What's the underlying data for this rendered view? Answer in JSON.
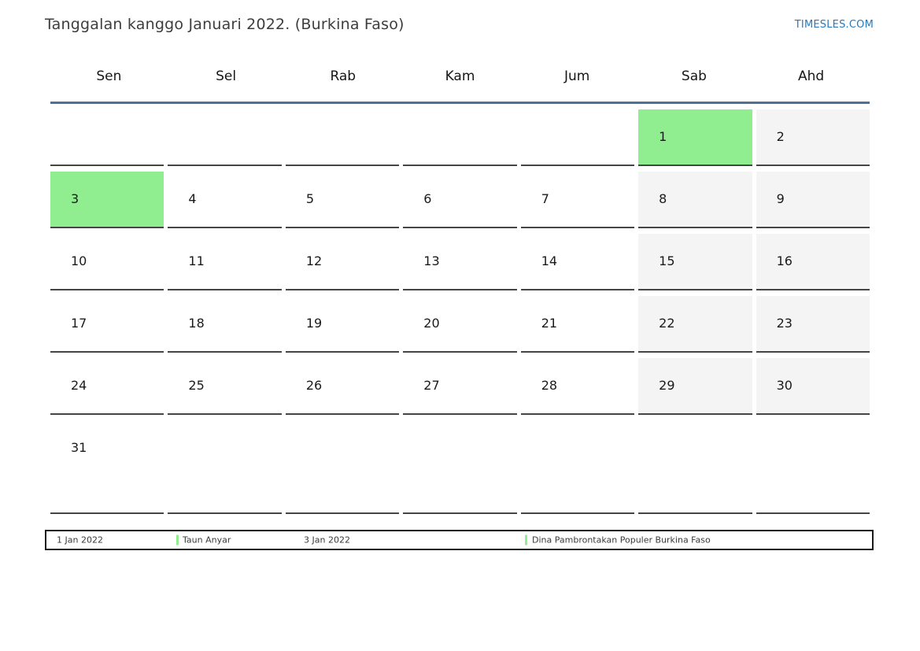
{
  "header": {
    "title": "Tanggalan kanggo Januari 2022. (Burkina Faso)",
    "site_link": "TIMESLES.COM"
  },
  "weekdays": [
    "Sen",
    "Sel",
    "Rab",
    "Kam",
    "Jum",
    "Sab",
    "Ahd"
  ],
  "calendar": {
    "weeks": [
      [
        {
          "day": ""
        },
        {
          "day": ""
        },
        {
          "day": ""
        },
        {
          "day": ""
        },
        {
          "day": ""
        },
        {
          "day": "1",
          "holiday": true
        },
        {
          "day": "2",
          "weekend": true
        }
      ],
      [
        {
          "day": "3",
          "holiday": true
        },
        {
          "day": "4"
        },
        {
          "day": "5"
        },
        {
          "day": "6"
        },
        {
          "day": "7"
        },
        {
          "day": "8",
          "weekend": true
        },
        {
          "day": "9",
          "weekend": true
        }
      ],
      [
        {
          "day": "10"
        },
        {
          "day": "11"
        },
        {
          "day": "12"
        },
        {
          "day": "13"
        },
        {
          "day": "14"
        },
        {
          "day": "15",
          "weekend": true
        },
        {
          "day": "16",
          "weekend": true
        }
      ],
      [
        {
          "day": "17"
        },
        {
          "day": "18"
        },
        {
          "day": "19"
        },
        {
          "day": "20"
        },
        {
          "day": "21"
        },
        {
          "day": "22",
          "weekend": true
        },
        {
          "day": "23",
          "weekend": true
        }
      ],
      [
        {
          "day": "24"
        },
        {
          "day": "25"
        },
        {
          "day": "26"
        },
        {
          "day": "27"
        },
        {
          "day": "28"
        },
        {
          "day": "29",
          "weekend": true
        },
        {
          "day": "30",
          "weekend": true
        }
      ],
      [
        {
          "day": "31"
        },
        {
          "day": ""
        },
        {
          "day": ""
        },
        {
          "day": ""
        },
        {
          "day": ""
        },
        {
          "day": ""
        },
        {
          "day": ""
        }
      ]
    ]
  },
  "legend": [
    {
      "date": "1 Jan 2022",
      "name": "Taun Anyar"
    },
    {
      "date": "3 Jan 2022",
      "name": "Dina Pambrontakan Populer Burkina Faso"
    }
  ],
  "colors": {
    "holiday_green": "#90ee90",
    "weekend_gray": "#f4f4f4",
    "header_line_blue": "#4f7196",
    "link_blue": "#2878be"
  }
}
